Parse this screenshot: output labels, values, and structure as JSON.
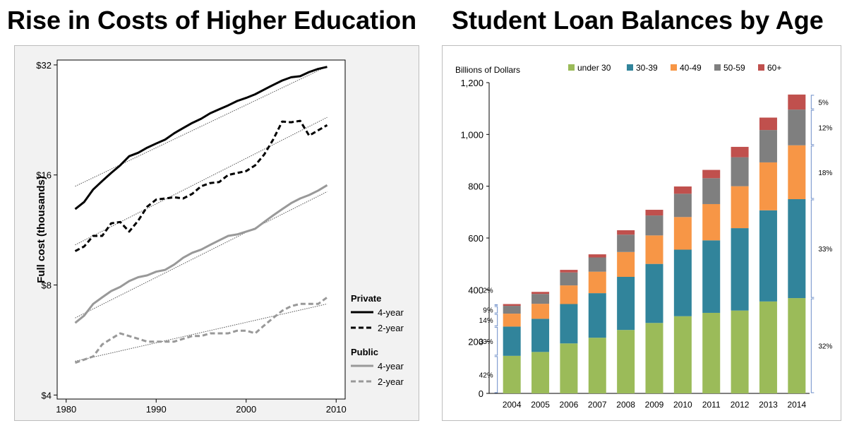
{
  "titles": {
    "left": "Rise in Costs of Higher Education",
    "right": "Student Loan Balances by Age"
  },
  "chart_data": [
    {
      "type": "line",
      "title": "Rise in Costs of Higher Education",
      "xlabel": "",
      "ylabel": "Full cost (thousands)",
      "y_scale": "log2",
      "xlim": [
        1979,
        2011
      ],
      "ylim": [
        3.9,
        33
      ],
      "xticks": [
        1980,
        1990,
        2000,
        2010
      ],
      "yticks": [
        4,
        8,
        16,
        32
      ],
      "ytick_labels": [
        "$4",
        "$8",
        "$16",
        "$32"
      ],
      "legend": {
        "groups": [
          {
            "label": "Private",
            "items": [
              {
                "label": "4-year",
                "series": 0
              },
              {
                "label": "2-year",
                "series": 1
              }
            ]
          },
          {
            "label": "Public",
            "items": [
              {
                "label": "4-year",
                "series": 2
              },
              {
                "label": "2-year",
                "series": 3
              }
            ]
          }
        ],
        "placement": "right"
      },
      "x": [
        1981,
        1982,
        1983,
        1984,
        1985,
        1986,
        1987,
        1988,
        1989,
        1990,
        1991,
        1992,
        1993,
        1994,
        1995,
        1996,
        1997,
        1998,
        1999,
        2000,
        2001,
        2002,
        2003,
        2004,
        2005,
        2006,
        2007,
        2008,
        2009
      ],
      "series": [
        {
          "group": "Private",
          "name": "4-year",
          "color": "#000000",
          "dash": "solid",
          "values": [
            12.9,
            13.5,
            14.6,
            15.4,
            16.2,
            17.0,
            18.0,
            18.4,
            19.0,
            19.5,
            20.0,
            20.8,
            21.5,
            22.2,
            22.8,
            23.6,
            24.2,
            24.8,
            25.5,
            26.0,
            26.6,
            27.4,
            28.2,
            29.0,
            29.6,
            29.8,
            30.6,
            31.2,
            31.6
          ],
          "trend": [
            14.9,
            31.7
          ]
        },
        {
          "group": "Private",
          "name": "2-year",
          "color": "#000000",
          "dash": "dashed",
          "values": [
            9.9,
            10.2,
            10.9,
            10.9,
            11.8,
            11.9,
            11.2,
            12.0,
            13.1,
            13.7,
            13.8,
            13.9,
            13.8,
            14.2,
            14.9,
            15.2,
            15.3,
            16.0,
            16.2,
            16.4,
            17.0,
            18.2,
            20.0,
            22.4,
            22.3,
            22.5,
            20.5,
            21.2,
            21.9
          ],
          "trend": [
            10.3,
            23.0
          ]
        },
        {
          "group": "Public",
          "name": "4-year",
          "color": "#999999",
          "dash": "solid",
          "values": [
            6.3,
            6.6,
            7.1,
            7.4,
            7.7,
            7.9,
            8.2,
            8.4,
            8.5,
            8.7,
            8.8,
            9.1,
            9.5,
            9.8,
            10.0,
            10.3,
            10.6,
            10.9,
            11.0,
            11.2,
            11.4,
            11.9,
            12.4,
            12.9,
            13.4,
            13.8,
            14.1,
            14.5,
            15.0
          ],
          "trend": [
            6.5,
            14.4
          ]
        },
        {
          "group": "Public",
          "name": "2-year",
          "color": "#999999",
          "dash": "dashed",
          "values": [
            4.9,
            5.0,
            5.1,
            5.5,
            5.7,
            5.9,
            5.8,
            5.7,
            5.6,
            5.6,
            5.6,
            5.6,
            5.7,
            5.8,
            5.8,
            5.9,
            5.9,
            5.9,
            6.0,
            6.0,
            5.9,
            6.2,
            6.5,
            6.8,
            7.0,
            7.1,
            7.1,
            7.1,
            7.4
          ],
          "trend": [
            4.95,
            7.1
          ]
        }
      ]
    },
    {
      "type": "bar",
      "stacked": true,
      "title": "Student Loan Balances by Age",
      "ylabel": "Billions of Dollars",
      "ylim": [
        0,
        1200
      ],
      "yticks": [
        0,
        200,
        400,
        600,
        800,
        1000,
        1200
      ],
      "ytick_labels": [
        "0",
        "200",
        "400",
        "600",
        "800",
        "1,000",
        "1,200"
      ],
      "categories": [
        "2004",
        "2005",
        "2006",
        "2007",
        "2008",
        "2009",
        "2010",
        "2011",
        "2012",
        "2013",
        "2014"
      ],
      "legend": {
        "placement": "top"
      },
      "series": [
        {
          "name": "under 30",
          "color": "#9bbb59",
          "values": [
            145,
            160,
            193,
            215,
            245,
            272,
            298,
            311,
            320,
            355,
            368
          ]
        },
        {
          "name": "30-39",
          "color": "#31849b",
          "values": [
            113,
            128,
            152,
            172,
            205,
            228,
            257,
            280,
            318,
            352,
            382
          ]
        },
        {
          "name": "40-49",
          "color": "#f79646",
          "values": [
            50,
            58,
            72,
            83,
            96,
            110,
            126,
            140,
            162,
            185,
            208
          ]
        },
        {
          "name": "50-59",
          "color": "#7f7f7f",
          "values": [
            30,
            38,
            50,
            55,
            67,
            77,
            90,
            100,
            112,
            125,
            138
          ]
        },
        {
          "name": "60+",
          "color": "#c0504d",
          "values": [
            7,
            8,
            10,
            12,
            17,
            22,
            28,
            32,
            40,
            48,
            58
          ]
        }
      ],
      "share_labels": {
        "left": [
          "42%",
          "33%",
          "14%",
          "9%",
          "2%"
        ],
        "right": [
          "32%",
          "33%",
          "18%",
          "12%",
          "5%"
        ]
      }
    }
  ]
}
